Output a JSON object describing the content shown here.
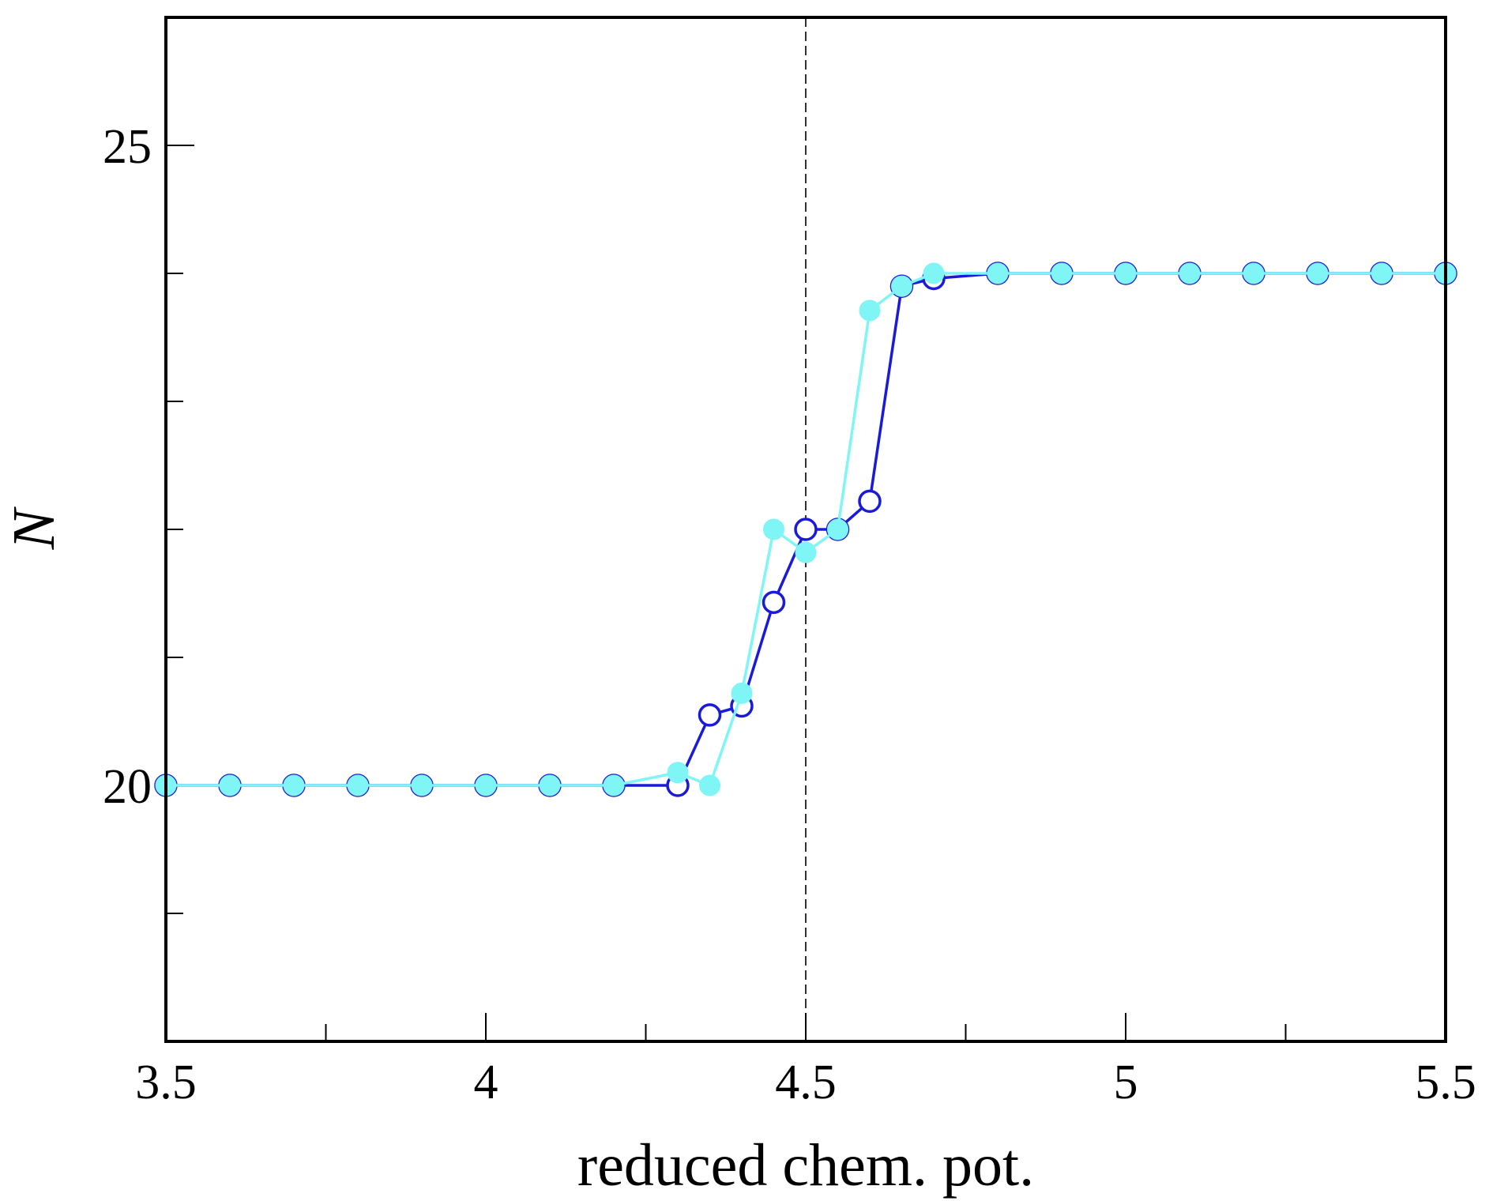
{
  "chart_data": {
    "type": "line",
    "title": "",
    "xlabel": "reduced chem. pot.",
    "ylabel": "N",
    "xlim": [
      3.5,
      5.5
    ],
    "ylim": [
      18.0,
      26.0
    ],
    "x_ticks": [
      3.5,
      4,
      4.5,
      5,
      5.5
    ],
    "x_tick_labels": [
      "3.5",
      "4",
      "4.5",
      "5",
      "5.5"
    ],
    "x_minor_ticks": [
      3.75,
      4.25,
      4.75,
      5.25
    ],
    "y_ticks": [
      20,
      25
    ],
    "y_tick_labels": [
      "20",
      "25"
    ],
    "y_minor_ticks": [
      19,
      21,
      22,
      23,
      24
    ],
    "reference_line": {
      "x": 4.5,
      "style": "dashed"
    },
    "grid": false,
    "legend": "none",
    "series": [
      {
        "color": "#1a1adb",
        "marker": "open-circle",
        "x": [
          3.5,
          3.6,
          3.7,
          3.8,
          3.9,
          4.0,
          4.1,
          4.2,
          4.3,
          4.35,
          4.4,
          4.45,
          4.5,
          4.55,
          4.6,
          4.65,
          4.7,
          4.8,
          4.9,
          5.0,
          5.1,
          5.2,
          5.3,
          5.4,
          5.5
        ],
        "y": [
          20.0,
          20.0,
          20.0,
          20.0,
          20.0,
          20.0,
          20.0,
          20.0,
          20.0,
          20.55,
          20.62,
          21.43,
          22.0,
          22.0,
          22.22,
          23.9,
          23.96,
          24.0,
          24.0,
          24.0,
          24.0,
          24.0,
          24.0,
          24.0,
          24.0
        ]
      },
      {
        "color": "#7ff5f5",
        "marker": "filled-circle",
        "x": [
          3.5,
          3.6,
          3.7,
          3.8,
          3.9,
          4.0,
          4.1,
          4.2,
          4.3,
          4.35,
          4.4,
          4.45,
          4.5,
          4.55,
          4.6,
          4.65,
          4.7,
          4.8,
          4.9,
          5.0,
          5.1,
          5.2,
          5.3,
          5.4,
          5.5
        ],
        "y": [
          20.0,
          20.0,
          20.0,
          20.0,
          20.0,
          20.0,
          20.0,
          20.0,
          20.1,
          20.0,
          20.72,
          22.0,
          21.82,
          22.0,
          23.71,
          23.9,
          24.0,
          24.0,
          24.0,
          24.0,
          24.0,
          24.0,
          24.0,
          24.0,
          24.0
        ]
      }
    ]
  }
}
